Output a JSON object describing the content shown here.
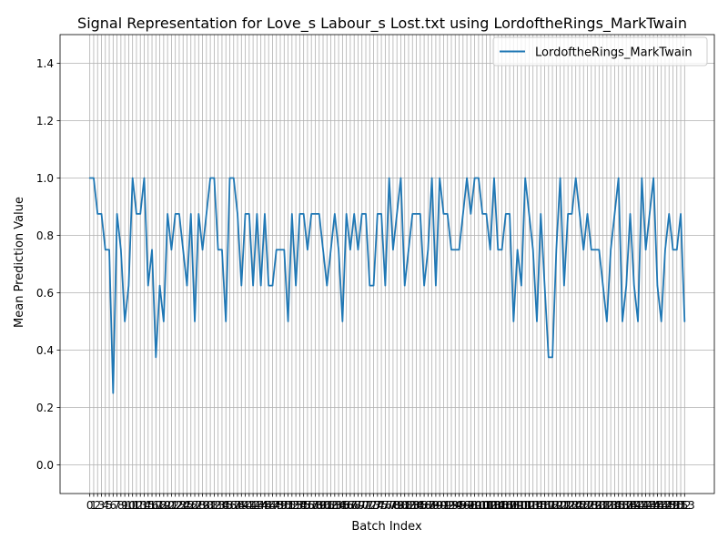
{
  "chart_data": {
    "type": "line",
    "title": "Signal Representation for Love_s Labour_s Lost.txt using LordoftheRings_MarkTwain",
    "xlabel": "Batch Index",
    "ylabel": "Mean Prediction Value",
    "xlim": [
      -7.65,
      160.65
    ],
    "ylim": [
      -0.1,
      1.5
    ],
    "yticks": [
      0.0,
      0.2,
      0.4,
      0.6,
      0.8,
      1.0,
      1.2,
      1.4
    ],
    "ytick_labels": [
      "0.0",
      "0.2",
      "0.4",
      "0.6",
      "0.8",
      "1.0",
      "1.2",
      "1.4"
    ],
    "grid": true,
    "legend_position": "top-right",
    "series": [
      {
        "name": "LordoftheRings_MarkTwain",
        "color": "#1f77b4",
        "x": [
          0,
          1,
          2,
          3,
          4,
          5,
          6,
          7,
          8,
          9,
          10,
          11,
          12,
          13,
          14,
          15,
          16,
          17,
          18,
          19,
          20,
          21,
          22,
          23,
          24,
          25,
          26,
          27,
          28,
          29,
          30,
          31,
          32,
          33,
          34,
          35,
          36,
          37,
          38,
          39,
          40,
          41,
          42,
          43,
          44,
          45,
          46,
          47,
          48,
          49,
          50,
          51,
          52,
          53,
          54,
          55,
          56,
          57,
          58,
          59,
          60,
          61,
          62,
          63,
          64,
          65,
          66,
          67,
          68,
          69,
          70,
          71,
          72,
          73,
          74,
          75,
          76,
          77,
          78,
          79,
          80,
          81,
          82,
          83,
          84,
          85,
          86,
          87,
          88,
          89,
          90,
          91,
          92,
          93,
          94,
          95,
          96,
          97,
          98,
          99,
          100,
          101,
          102,
          103,
          104,
          105,
          106,
          107,
          108,
          109,
          110,
          111,
          112,
          113,
          114,
          115,
          116,
          117,
          118,
          119,
          120,
          121,
          122,
          123,
          124,
          125,
          126,
          127,
          128,
          129,
          130,
          131,
          132,
          133,
          134,
          135,
          136,
          137,
          138,
          139,
          140,
          141,
          142,
          143,
          144,
          145,
          146,
          147,
          148,
          149,
          150,
          151,
          152,
          153
        ],
        "values": [
          1.0,
          1.0,
          0.875,
          0.875,
          0.75,
          0.75,
          0.25,
          0.875,
          0.75,
          0.5,
          0.625,
          1.0,
          0.875,
          0.875,
          1.0,
          0.625,
          0.75,
          0.375,
          0.625,
          0.5,
          0.875,
          0.75,
          0.875,
          0.875,
          0.75,
          0.625,
          0.875,
          0.5,
          0.875,
          0.75,
          0.875,
          1.0,
          1.0,
          0.75,
          0.75,
          0.5,
          1.0,
          1.0,
          0.875,
          0.625,
          0.875,
          0.875,
          0.625,
          0.875,
          0.625,
          0.875,
          0.625,
          0.625,
          0.75,
          0.75,
          0.75,
          0.5,
          0.875,
          0.625,
          0.875,
          0.875,
          0.75,
          0.875,
          0.875,
          0.875,
          0.75,
          0.625,
          0.75,
          0.875,
          0.75,
          0.5,
          0.875,
          0.75,
          0.875,
          0.75,
          0.875,
          0.875,
          0.625,
          0.625,
          0.875,
          0.875,
          0.625,
          1.0,
          0.75,
          0.875,
          1.0,
          0.625,
          0.75,
          0.875,
          0.875,
          0.875,
          0.625,
          0.75,
          1.0,
          0.625,
          1.0,
          0.875,
          0.875,
          0.75,
          0.75,
          0.75,
          0.875,
          1.0,
          0.875,
          1.0,
          1.0,
          0.875,
          0.875,
          0.75,
          1.0,
          0.75,
          0.75,
          0.875,
          0.875,
          0.5,
          0.75,
          0.625,
          1.0,
          0.875,
          0.75,
          0.5,
          0.875,
          0.625,
          0.375,
          0.375,
          0.75,
          1.0,
          0.625,
          0.875,
          0.875,
          1.0,
          0.875,
          0.75,
          0.875,
          0.75,
          0.75,
          0.75,
          0.625,
          0.5,
          0.75,
          0.875,
          1.0,
          0.5,
          0.625,
          0.875,
          0.625,
          0.5,
          1.0,
          0.75,
          0.875,
          1.0,
          0.625,
          0.5,
          0.75,
          0.875,
          0.75,
          0.75,
          0.875,
          0.5
        ]
      }
    ],
    "xticks": [
      0,
      1,
      2,
      3,
      4,
      5,
      6,
      7,
      8,
      9,
      10,
      11,
      12,
      13,
      14,
      15,
      16,
      17,
      18,
      19,
      20,
      21,
      22,
      23,
      24,
      25,
      26,
      27,
      28,
      29,
      30,
      31,
      32,
      33,
      34,
      35,
      36,
      37,
      38,
      39,
      40,
      41,
      42,
      43,
      44,
      45,
      46,
      47,
      48,
      49,
      50,
      51,
      52,
      53,
      54,
      55,
      56,
      57,
      58,
      59,
      60,
      61,
      62,
      63,
      64,
      65,
      66,
      67,
      68,
      69,
      70,
      71,
      72,
      73,
      74,
      75,
      76,
      77,
      78,
      79,
      80,
      81,
      82,
      83,
      84,
      85,
      86,
      87,
      88,
      89,
      90,
      91,
      92,
      93,
      94,
      95,
      96,
      97,
      98,
      99,
      100,
      101,
      102,
      103,
      104,
      105,
      106,
      107,
      108,
      109,
      110,
      111,
      112,
      113,
      114,
      115,
      116,
      117,
      118,
      119,
      120,
      121,
      122,
      123,
      124,
      125,
      126,
      127,
      128,
      129,
      130,
      131,
      132,
      133,
      134,
      135,
      136,
      137,
      138,
      139,
      140,
      141,
      142,
      143,
      144,
      145,
      146,
      147,
      148,
      149,
      150,
      151,
      152,
      153
    ]
  }
}
